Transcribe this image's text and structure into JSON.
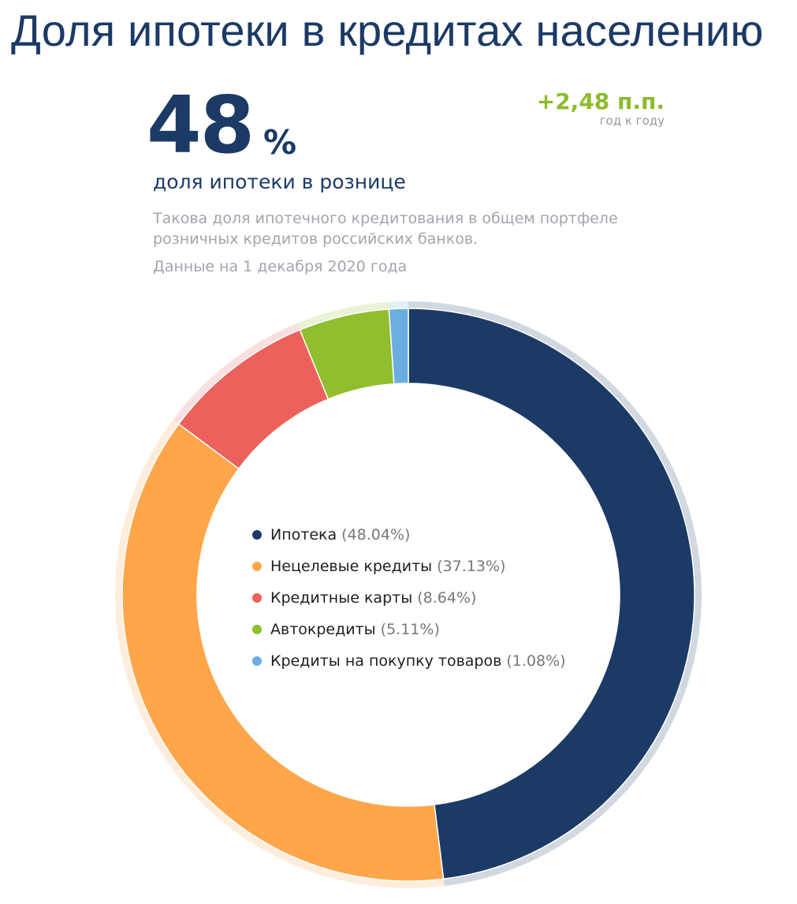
{
  "page": {
    "title": "Доля ипотеки в кредитах населению"
  },
  "kpi": {
    "value": "48",
    "unit": "%",
    "label": "доля ипотеки в рознице",
    "delta": "+2,48 п.п.",
    "delta_caption": "год к году",
    "description": "Такова доля ипотечного кредитования в общем портфеле розничных кредитов российских банков.",
    "date_note": "Данные на 1 декабря 2020 года"
  },
  "colors": {
    "title": "#1b3a66",
    "delta": "#8dbb2e",
    "muted_text": "#a4a4ae"
  },
  "chart_data": {
    "type": "pie",
    "variant": "donut",
    "start": "top",
    "direction": "clockwise",
    "legend_position": "center",
    "categories": [
      "Ипотека",
      "Нецелевые кредиты",
      "Кредитные карты",
      "Автокредиты",
      "Кредиты на покупку товаров"
    ],
    "values": [
      48.04,
      37.13,
      8.64,
      5.11,
      1.08
    ],
    "value_labels": [
      "(48.04%)",
      "(37.13%)",
      "(8.64%)",
      "(5.11%)",
      "(1.08%)"
    ],
    "colors": [
      "#1b3a66",
      "#ffa64b",
      "#ec615c",
      "#91be2f",
      "#6aaee0"
    ]
  }
}
